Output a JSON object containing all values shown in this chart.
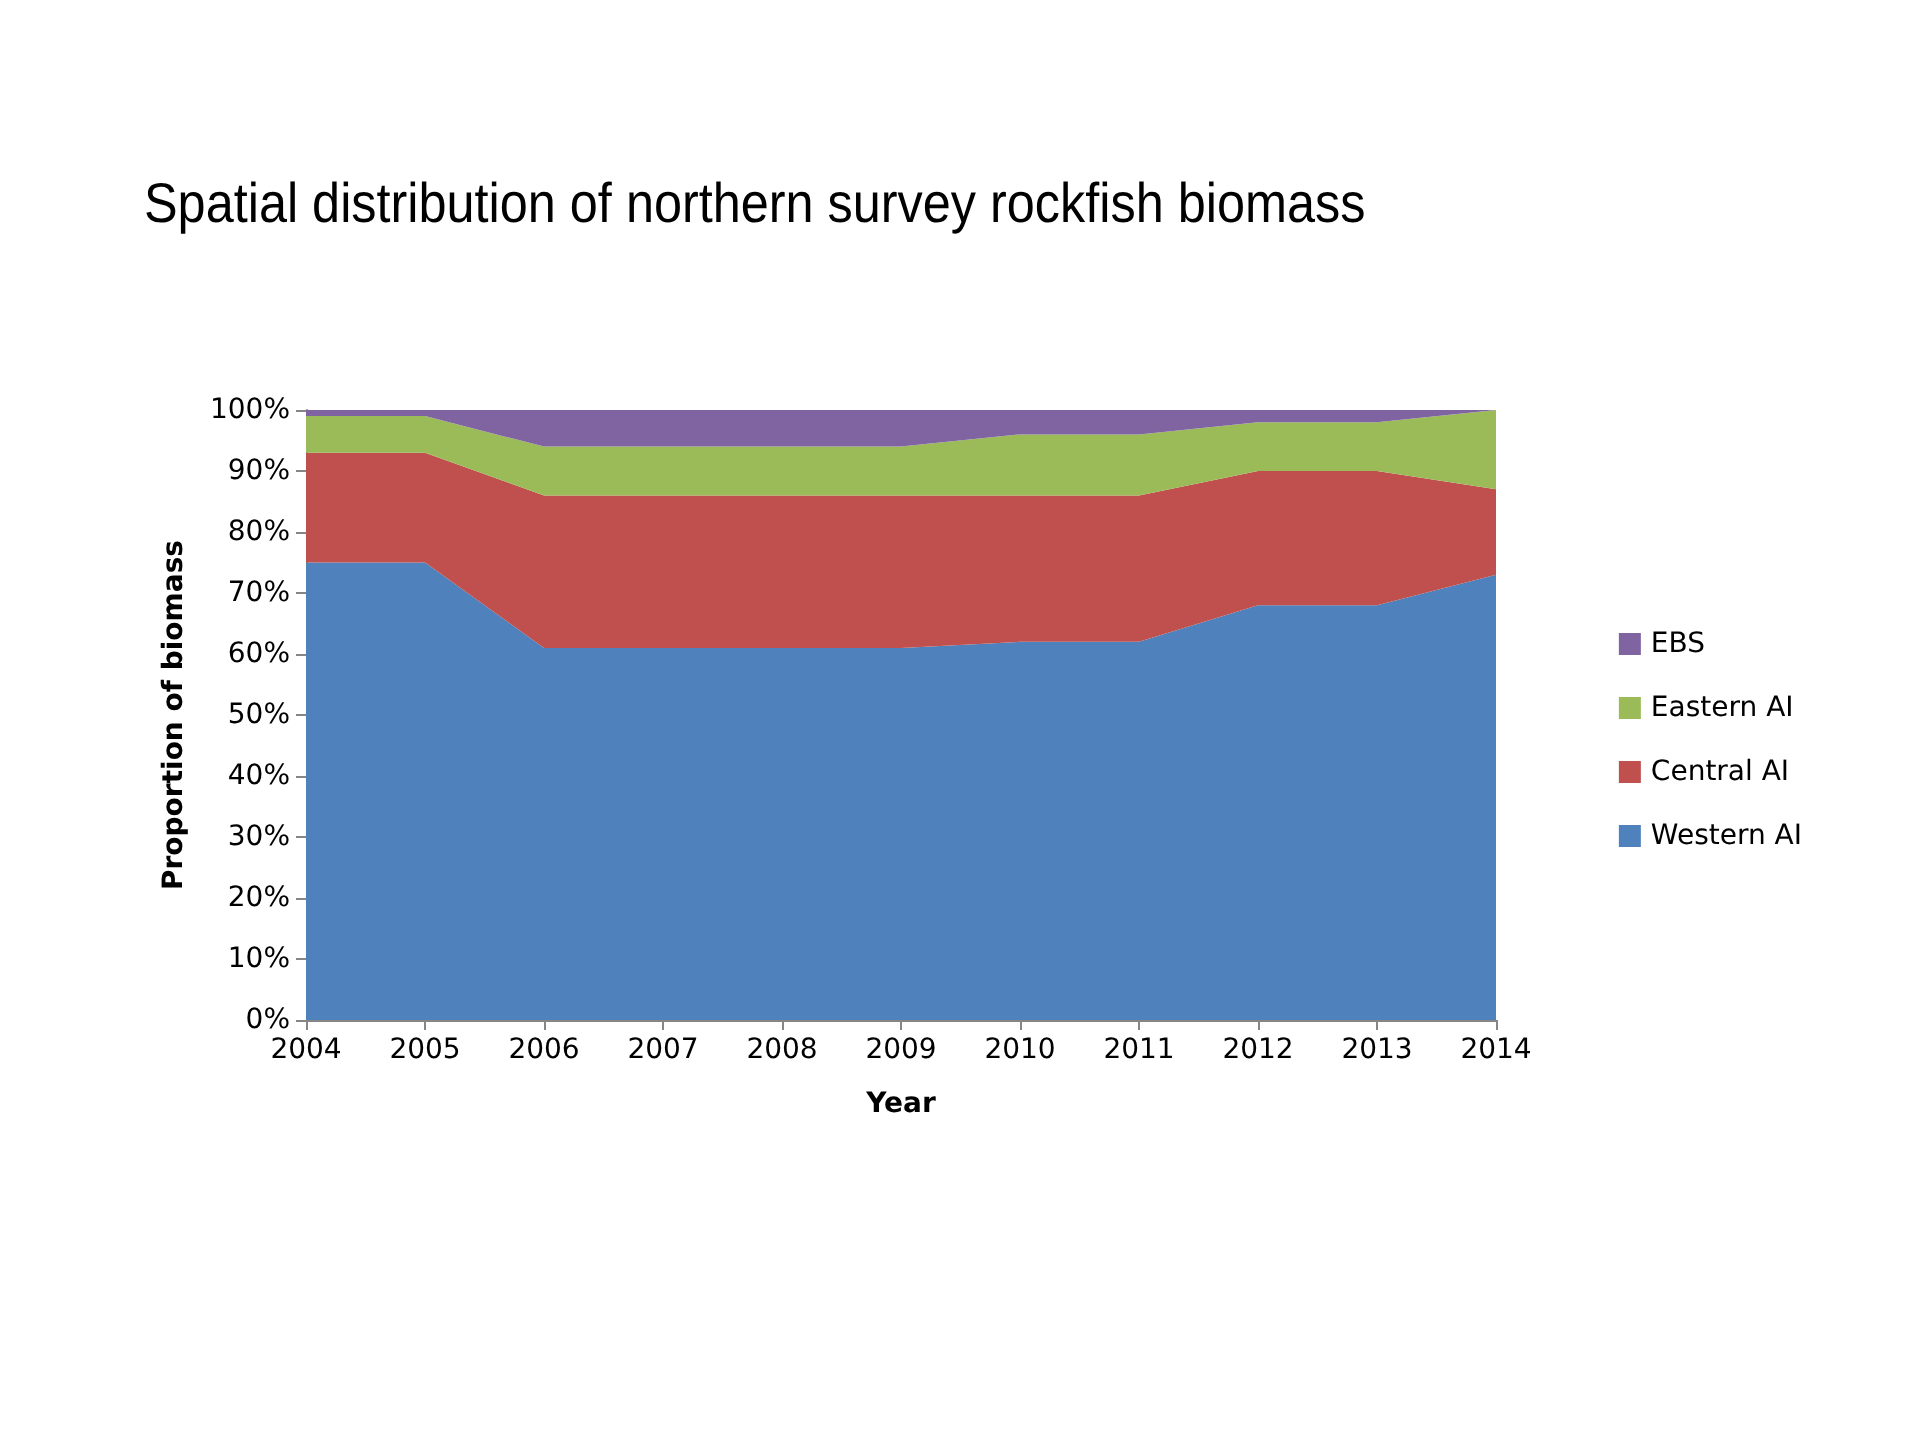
{
  "chart_data": {
    "type": "area",
    "title": "Spatial distribution of northern survey rockfish biomass",
    "xlabel": "Year",
    "ylabel": "Proportion of biomass",
    "categories": [
      "2004",
      "2005",
      "2006",
      "2007",
      "2008",
      "2009",
      "2010",
      "2011",
      "2012",
      "2013",
      "2014"
    ],
    "stacked": true,
    "series": [
      {
        "name": "Western AI",
        "color": "#4f81bd",
        "values": [
          75,
          75,
          61,
          61,
          61,
          61,
          62,
          62,
          68,
          68,
          73
        ]
      },
      {
        "name": "Central AI",
        "color": "#c0504d",
        "values": [
          18,
          18,
          25,
          25,
          25,
          25,
          24,
          24,
          22,
          22,
          14
        ]
      },
      {
        "name": "Eastern AI",
        "color": "#9bbb59",
        "values": [
          6,
          6,
          8,
          8,
          8,
          8,
          10,
          10,
          8,
          8,
          13
        ]
      },
      {
        "name": "EBS",
        "color": "#8064a2",
        "values": [
          1,
          1,
          6,
          6,
          6,
          6,
          4,
          4,
          2,
          2,
          0
        ]
      }
    ],
    "ylim": [
      0,
      100
    ],
    "yticks": [
      {
        "value": 0,
        "label": "0%"
      },
      {
        "value": 10,
        "label": "10%"
      },
      {
        "value": 20,
        "label": "20%"
      },
      {
        "value": 30,
        "label": "30%"
      },
      {
        "value": 40,
        "label": "40%"
      },
      {
        "value": 50,
        "label": "50%"
      },
      {
        "value": 60,
        "label": "60%"
      },
      {
        "value": 70,
        "label": "70%"
      },
      {
        "value": 80,
        "label": "80%"
      },
      {
        "value": 90,
        "label": "90%"
      },
      {
        "value": 100,
        "label": "100%"
      }
    ],
    "grid": false,
    "legend": "right"
  }
}
